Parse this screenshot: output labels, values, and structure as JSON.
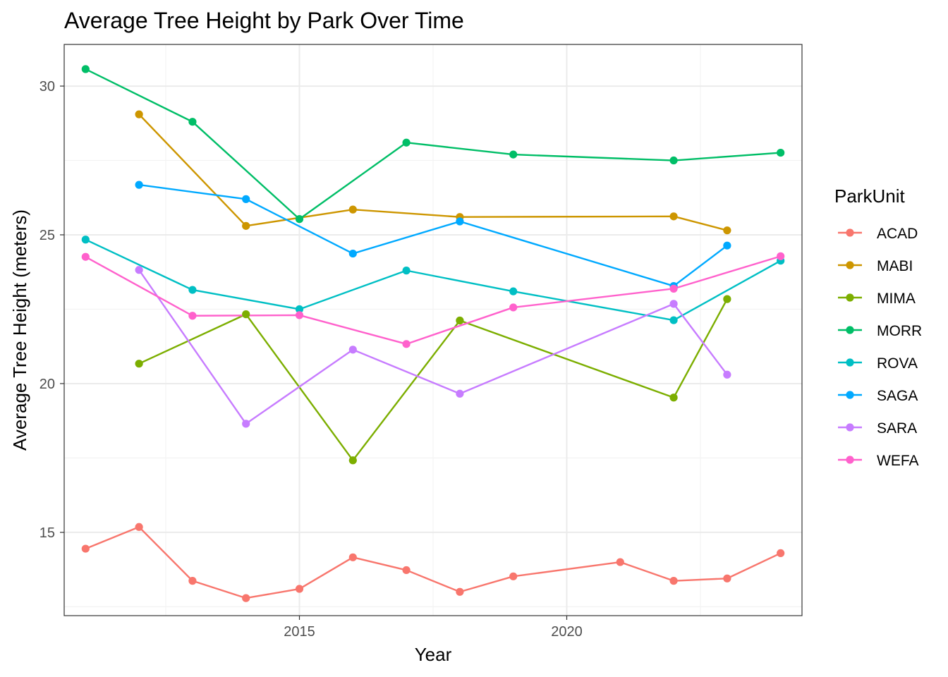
{
  "chart_data": {
    "type": "line",
    "title": "Average Tree Height by Park Over Time",
    "xlabel": "Year",
    "ylabel": "Average Tree Height (meters)",
    "xlim": [
      2010.6,
      2024.4
    ],
    "ylim": [
      12.2,
      31.4
    ],
    "x_major_ticks": [
      2015,
      2020
    ],
    "x_minor_ticks": [
      2012.5,
      2017.5,
      2022.5
    ],
    "y_major_ticks": [
      15,
      20,
      25,
      30
    ],
    "y_minor_ticks": [
      12.5,
      17.5,
      22.5,
      27.5
    ],
    "x_tick_labels": [
      "2015",
      "2020"
    ],
    "y_tick_labels": [
      "15",
      "20",
      "25",
      "30"
    ],
    "grid": true,
    "legend_title": "ParkUnit",
    "legend_position": "right",
    "series": [
      {
        "name": "ACAD",
        "color": "#F8766D",
        "x": [
          2011,
          2012,
          2013,
          2014,
          2015,
          2016,
          2017,
          2018,
          2019,
          2021,
          2022,
          2023,
          2024
        ],
        "values": [
          14.45,
          15.18,
          13.37,
          12.79,
          13.1,
          14.16,
          13.73,
          13.0,
          13.52,
          14.0,
          13.37,
          13.45,
          14.3
        ]
      },
      {
        "name": "MABI",
        "color": "#CD9600",
        "x": [
          2012,
          2014,
          2016,
          2018,
          2022,
          2023
        ],
        "values": [
          29.05,
          25.3,
          25.85,
          25.6,
          25.62,
          25.15
        ]
      },
      {
        "name": "MIMA",
        "color": "#7CAE00",
        "x": [
          2012,
          2014,
          2016,
          2018,
          2022,
          2023
        ],
        "values": [
          20.67,
          22.33,
          17.42,
          22.12,
          19.53,
          22.84
        ]
      },
      {
        "name": "MORR",
        "color": "#00BE67",
        "x": [
          2011,
          2013,
          2015,
          2017,
          2019,
          2022,
          2024
        ],
        "values": [
          30.57,
          28.8,
          25.53,
          28.1,
          27.7,
          27.5,
          27.76
        ]
      },
      {
        "name": "ROVA",
        "color": "#00BFC4",
        "x": [
          2011,
          2013,
          2015,
          2017,
          2019,
          2022,
          2024
        ],
        "values": [
          24.84,
          23.15,
          22.5,
          23.8,
          23.1,
          22.13,
          24.13
        ]
      },
      {
        "name": "SAGA",
        "color": "#00A9FF",
        "x": [
          2012,
          2014,
          2016,
          2018,
          2022,
          2023
        ],
        "values": [
          26.68,
          26.2,
          24.37,
          25.45,
          23.28,
          24.64
        ]
      },
      {
        "name": "SARA",
        "color": "#C77CFF",
        "x": [
          2012,
          2014,
          2016,
          2018,
          2022,
          2023
        ],
        "values": [
          23.82,
          18.65,
          21.14,
          19.66,
          22.68,
          20.3
        ]
      },
      {
        "name": "WEFA",
        "color": "#FF61CC",
        "x": [
          2011,
          2013,
          2015,
          2017,
          2019,
          2022,
          2024
        ],
        "values": [
          24.26,
          22.28,
          22.3,
          21.33,
          22.56,
          23.19,
          24.28
        ]
      }
    ]
  }
}
